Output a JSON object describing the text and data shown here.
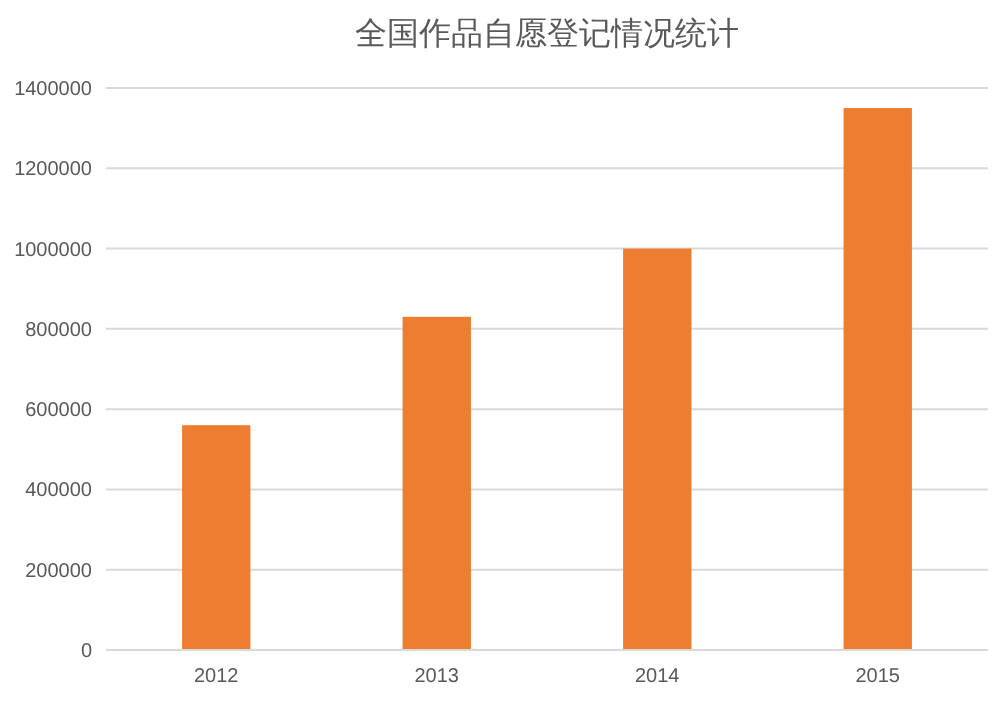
{
  "chart_data": {
    "type": "bar",
    "title": "全国作品自愿登记情况统计",
    "categories": [
      "2012",
      "2013",
      "2014",
      "2015"
    ],
    "values": [
      560000,
      830000,
      1000000,
      1350000
    ],
    "color": "#ed7d31",
    "ylim": [
      0,
      1400000
    ],
    "yticks": [
      0,
      200000,
      400000,
      600000,
      800000,
      1000000,
      1200000,
      1400000
    ],
    "grid": "y"
  }
}
